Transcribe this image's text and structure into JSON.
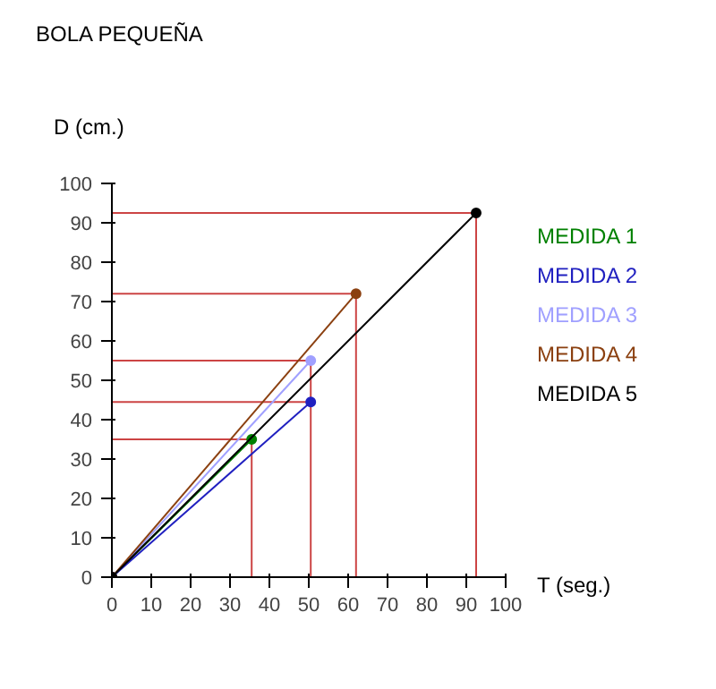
{
  "chart_data": {
    "type": "line",
    "title": "BOLA PEQUEÑA",
    "xlabel": "T (seg.)",
    "ylabel": "D (cm.)",
    "xlim": [
      0,
      100
    ],
    "ylim": [
      0,
      100
    ],
    "xticks": [
      0,
      10,
      20,
      30,
      40,
      50,
      60,
      70,
      80,
      90,
      100
    ],
    "yticks": [
      0,
      10,
      20,
      30,
      40,
      50,
      60,
      70,
      80,
      90,
      100
    ],
    "grid": false,
    "marker": "circle",
    "line_style": "solid",
    "series": [
      {
        "name": "MEDIDA 1",
        "color": "#008000",
        "x": [
          0,
          35.5
        ],
        "values": [
          0,
          35
        ]
      },
      {
        "name": "MEDIDA 2",
        "color": "#2020c0",
        "x": [
          0,
          50.5
        ],
        "values": [
          0,
          44.5
        ]
      },
      {
        "name": "MEDIDA 3",
        "color": "#a0a0ff",
        "x": [
          0,
          50.5
        ],
        "values": [
          0,
          55
        ]
      },
      {
        "name": "MEDIDA 4",
        "color": "#8b4010",
        "x": [
          0,
          62
        ],
        "values": [
          0,
          72
        ]
      },
      {
        "name": "MEDIDA 5",
        "color": "#000000",
        "x": [
          0,
          92.5
        ],
        "values": [
          0,
          92.5
        ]
      }
    ],
    "ref_lines": [
      {
        "axis": "x",
        "value": 35.5,
        "color": "#cc4444"
      },
      {
        "axis": "x",
        "value": 50.5,
        "color": "#cc4444"
      },
      {
        "axis": "x",
        "value": 62,
        "color": "#cc4444"
      },
      {
        "axis": "x",
        "value": 92.5,
        "color": "#cc4444"
      },
      {
        "axis": "y",
        "value": 35,
        "color": "#cc4444"
      },
      {
        "axis": "y",
        "value": 44.5,
        "color": "#cc4444"
      },
      {
        "axis": "y",
        "value": 55,
        "color": "#cc4444"
      },
      {
        "axis": "y",
        "value": 72,
        "color": "#cc4444"
      },
      {
        "axis": "y",
        "value": 92.5,
        "color": "#cc4444"
      }
    ]
  }
}
